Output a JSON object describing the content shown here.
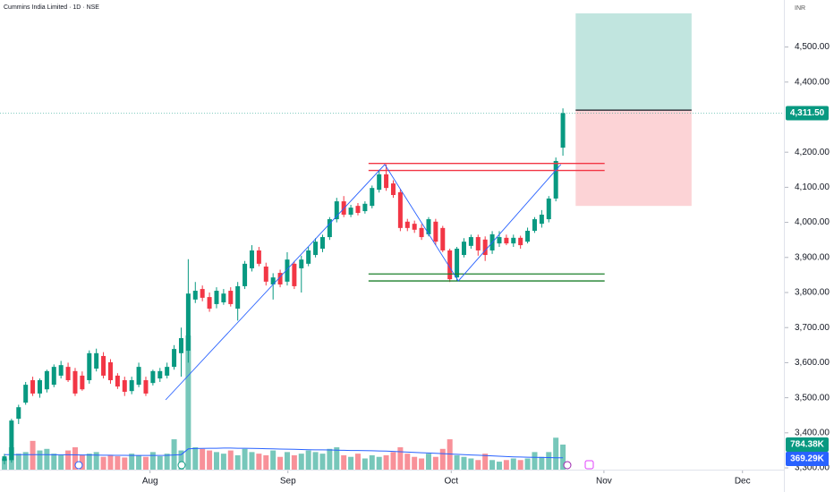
{
  "chart_data": {
    "type": "candlestick",
    "title": "Cummins India Limited · 1D · NSE",
    "currency": "INR",
    "x": [
      0,
      1,
      2,
      3,
      4,
      5,
      6,
      7,
      8,
      9,
      10,
      11,
      12,
      13,
      14,
      15,
      16,
      17,
      18,
      19,
      20,
      21,
      22,
      23,
      24,
      25,
      26,
      27,
      28,
      29,
      30,
      31,
      32,
      33,
      34,
      35,
      36,
      37,
      38,
      39,
      40,
      41,
      42,
      43,
      44,
      45,
      46,
      47,
      48,
      49,
      50,
      51,
      52,
      53,
      54,
      55,
      56,
      57,
      58,
      59,
      60,
      61,
      62,
      63,
      64,
      65,
      66,
      67,
      68,
      69,
      70,
      71,
      72,
      73,
      74,
      75,
      76,
      77,
      78,
      79
    ],
    "open": [
      3320,
      3322,
      3440,
      3486,
      3550,
      3512,
      3524,
      3537,
      3563,
      3588,
      3576,
      3563,
      3550,
      3583,
      3619,
      3601,
      3563,
      3550,
      3519,
      3537,
      3550,
      3542,
      3555,
      3563,
      3588,
      3627,
      3634,
      3780,
      3810,
      3787,
      3767,
      3772,
      3805,
      3754,
      3818,
      3869,
      3920,
      3874,
      3823,
      3856,
      3831,
      3882,
      3869,
      3882,
      3907,
      3925,
      3958,
      4009,
      4060,
      4022,
      4047,
      4032,
      4047,
      4093,
      4137,
      4111,
      4086,
      4002,
      3996,
      3984,
      3966,
      4002,
      3984,
      3920,
      3843,
      3907,
      3933,
      3958,
      3951,
      3920,
      3940,
      3956,
      3940,
      3956,
      3945,
      3976,
      3996,
      4009,
      4068,
      4213
    ],
    "high": [
      3340,
      3440,
      3480,
      3545,
      3560,
      3555,
      3580,
      3595,
      3605,
      3600,
      3585,
      3575,
      3635,
      3640,
      3630,
      3610,
      3570,
      3560,
      3560,
      3600,
      3560,
      3580,
      3585,
      3600,
      3650,
      3700,
      3895,
      3830,
      3820,
      3800,
      3815,
      3810,
      3815,
      3830,
      3890,
      3935,
      3930,
      3885,
      3855,
      3865,
      3915,
      3890,
      3905,
      3930,
      3955,
      3965,
      4015,
      4070,
      4075,
      4050,
      4055,
      4060,
      4105,
      4150,
      4165,
      4120,
      4095,
      4010,
      4005,
      3995,
      4015,
      4010,
      3990,
      3925,
      3930,
      3955,
      3965,
      3965,
      3960,
      3975,
      3975,
      3965,
      3965,
      3962,
      3985,
      4015,
      4035,
      4075,
      4185,
      4325
    ],
    "low": [
      3310,
      3315,
      3425,
      3480,
      3505,
      3500,
      3515,
      3530,
      3555,
      3545,
      3505,
      3520,
      3540,
      3575,
      3555,
      3540,
      3525,
      3505,
      3510,
      3530,
      3505,
      3535,
      3545,
      3555,
      3580,
      3560,
      3600,
      3770,
      3775,
      3745,
      3755,
      3765,
      3760,
      3720,
      3810,
      3860,
      3875,
      3820,
      3780,
      3815,
      3820,
      3810,
      3800,
      3875,
      3900,
      3915,
      3950,
      4000,
      4015,
      4015,
      4020,
      4025,
      4040,
      4085,
      4090,
      4070,
      3975,
      3975,
      3970,
      3950,
      3960,
      3935,
      3915,
      3830,
      3833,
      3900,
      3925,
      3905,
      3890,
      3910,
      3930,
      3935,
      3930,
      3925,
      3940,
      3970,
      3985,
      4000,
      4060,
      4190
    ],
    "close": [
      3333,
      3435,
      3473,
      3537,
      3512,
      3550,
      3576,
      3588,
      3593,
      3550,
      3512,
      3524,
      3627,
      3627,
      3563,
      3550,
      3532,
      3517,
      3550,
      3588,
      3512,
      3576,
      3576,
      3588,
      3639,
      3670,
      3797,
      3805,
      3785,
      3754,
      3805,
      3797,
      3767,
      3818,
      3882,
      3920,
      3882,
      3831,
      3843,
      3823,
      3894,
      3818,
      3894,
      3920,
      3945,
      3958,
      4009,
      4060,
      4022,
      4042,
      4027,
      4053,
      4098,
      4137,
      4098,
      4078,
      3984,
      3984,
      3979,
      3958,
      4009,
      3945,
      3920,
      3838,
      3925,
      3945,
      3958,
      3920,
      3907,
      3966,
      3958,
      3940,
      3956,
      3935,
      3976,
      4009,
      4022,
      4068,
      4175,
      4311.5
    ],
    "volume": [
      350,
      700,
      500,
      550,
      900,
      600,
      650,
      500,
      450,
      600,
      700,
      450,
      500,
      550,
      400,
      450,
      420,
      380,
      500,
      450,
      400,
      550,
      420,
      500,
      950,
      600,
      4200,
      700,
      650,
      600,
      550,
      500,
      600,
      450,
      650,
      550,
      500,
      450,
      600,
      400,
      550,
      450,
      500,
      600,
      550,
      500,
      650,
      700,
      450,
      400,
      500,
      350,
      450,
      400,
      450,
      550,
      700,
      500,
      400,
      350,
      500,
      400,
      650,
      950,
      450,
      400,
      350,
      300,
      500,
      300,
      250,
      300,
      350,
      300,
      350,
      550,
      400,
      550,
      1000,
      784.38
    ],
    "volume_ma": [
      470,
      470,
      468,
      468,
      470,
      470,
      468,
      465,
      465,
      465,
      462,
      460,
      458,
      455,
      452,
      450,
      448,
      448,
      446,
      446,
      446,
      445,
      445,
      448,
      460,
      470,
      650,
      660,
      665,
      670,
      670,
      675,
      675,
      670,
      668,
      665,
      660,
      655,
      650,
      645,
      640,
      635,
      630,
      625,
      620,
      620,
      615,
      610,
      605,
      600,
      598,
      595,
      590,
      585,
      580,
      570,
      560,
      550,
      540,
      530,
      520,
      510,
      500,
      490,
      480,
      470,
      460,
      450,
      440,
      430,
      420,
      410,
      400,
      395,
      390,
      385,
      380,
      378,
      372,
      369.29
    ],
    "up_color": "#089981",
    "down_color": "#f23645",
    "ma_color": "#2962ff",
    "xlim": [
      -0.63,
      110.13
    ],
    "ylim": [
      3295,
      4634
    ],
    "volume_ylim": [
      0,
      14700
    ],
    "xticks": [
      {
        "value": 20.6,
        "label": "Aug"
      },
      {
        "value": 40.1,
        "label": "Sep"
      },
      {
        "value": 63.2,
        "label": "Oct"
      },
      {
        "value": 84.8,
        "label": "Nov"
      },
      {
        "value": 104.4,
        "label": "Dec"
      }
    ],
    "yticks": [
      {
        "value": 3300,
        "label": "3,300.00"
      },
      {
        "value": 3400,
        "label": "3,400.00"
      },
      {
        "value": 3500,
        "label": "3,500.00"
      },
      {
        "value": 3600,
        "label": "3,600.00"
      },
      {
        "value": 3700,
        "label": "3,700.00"
      },
      {
        "value": 3800,
        "label": "3,800.00"
      },
      {
        "value": 3900,
        "label": "3,900.00"
      },
      {
        "value": 4000,
        "label": "4,000.00"
      },
      {
        "value": 4100,
        "label": "4,100.00"
      },
      {
        "value": 4200,
        "label": "4,200.00"
      },
      {
        "value": 4400,
        "label": "4,400.00"
      },
      {
        "value": 4500,
        "label": "4,500.00"
      }
    ],
    "last_price": {
      "value": 4311.5,
      "label": "4,311.50"
    },
    "last_volume": {
      "value": 784.38,
      "label": "784.38K"
    },
    "last_volume_ma": {
      "value": 369.29,
      "label": "369.29K"
    },
    "levels": [
      {
        "y": 4168,
        "x": [
          51.5,
          84.9
        ],
        "color": "#f23645"
      },
      {
        "y": 4148,
        "x": [
          51.5,
          84.9
        ],
        "color": "#f23645"
      },
      {
        "y": 3853,
        "x": [
          51.5,
          84.9
        ],
        "color": "#1b7f2a"
      },
      {
        "y": 3833,
        "x": [
          51.5,
          84.9
        ],
        "color": "#1b7f2a"
      }
    ],
    "zigzag": {
      "x": [
        22.8,
        53.8,
        64.2,
        78.7
      ],
      "y": [
        3494,
        4165,
        3833,
        4165
      ],
      "color": "#2962ff"
    },
    "position": {
      "x": [
        80.8,
        97.2
      ],
      "entry": 4320,
      "target": 4596,
      "stop": 4047
    }
  }
}
